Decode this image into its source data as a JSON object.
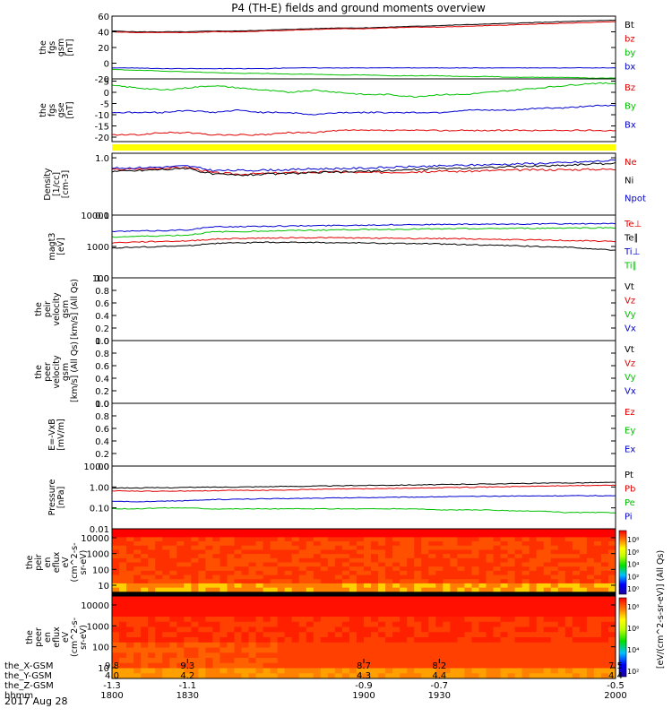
{
  "title": "P4 (TH-E) fields and ground moments overview",
  "date_label": "2017 Aug 28",
  "colors": {
    "black": "#000000",
    "red": "#e00000",
    "green": "#00c000",
    "blue": "#0000d0",
    "yellow": "#ffff00"
  },
  "chart_data": [
    {
      "type": "line",
      "id": "fgs_gsm",
      "ylabel_lines": [
        "the",
        "fgs",
        "gsm",
        "[nT]"
      ],
      "ylim": [
        -20,
        60
      ],
      "yticks": [
        "60",
        "40",
        "20",
        "0",
        "-20"
      ],
      "legend": [
        "Bt",
        "bz",
        "by",
        "bx"
      ],
      "x": [
        1800,
        1810,
        1820,
        1830,
        1840,
        1850,
        1860,
        1870,
        1880,
        1890,
        1900,
        1910,
        1920,
        1930,
        1940,
        1950,
        1960,
        1970,
        1980,
        1990,
        2000
      ],
      "series": [
        {
          "name": "Bt",
          "color": "black",
          "values": [
            41,
            40,
            40,
            40,
            41,
            41,
            42,
            43,
            44,
            45,
            45,
            46,
            47,
            48,
            49,
            50,
            51,
            52,
            53,
            54,
            55
          ]
        },
        {
          "name": "bz",
          "color": "red",
          "values": [
            40,
            39,
            39,
            39,
            40,
            40,
            41,
            42,
            43,
            44,
            44,
            45,
            46,
            46,
            47,
            48,
            49,
            50,
            51,
            52,
            53
          ]
        },
        {
          "name": "by",
          "color": "green",
          "values": [
            -8,
            -9,
            -10,
            -11,
            -12,
            -13,
            -13,
            -14,
            -14,
            -15,
            -15,
            -16,
            -16,
            -16,
            -17,
            -17,
            -18,
            -18,
            -18,
            -19,
            -19
          ]
        },
        {
          "name": "bx",
          "color": "blue",
          "values": [
            -6,
            -6,
            -7,
            -7,
            -7,
            -7,
            -7,
            -6,
            -6,
            -6,
            -6,
            -6,
            -6,
            -6,
            -6,
            -6,
            -6,
            -6,
            -6,
            -6,
            -6
          ]
        }
      ]
    },
    {
      "type": "line",
      "id": "fgs_gse",
      "ylabel_lines": [
        "the",
        "fgs",
        "gse",
        "[nT]"
      ],
      "ylim": [
        -22,
        6
      ],
      "yticks": [
        "5",
        "0",
        "-5",
        "-10",
        "-15",
        "-20"
      ],
      "legend": [
        "Bz",
        "By",
        "Bx"
      ],
      "x": [
        1800,
        1810,
        1820,
        1830,
        1840,
        1850,
        1860,
        1870,
        1880,
        1890,
        1900,
        1910,
        1920,
        1930,
        1940,
        1950,
        1960,
        1970,
        1980,
        1990,
        2000
      ],
      "series": [
        {
          "name": "Bz",
          "color": "red",
          "values": [
            -19,
            -19,
            -18,
            -18,
            -19,
            -19,
            -19,
            -18,
            -18,
            -17,
            -17,
            -17,
            -17,
            -17,
            -17,
            -17,
            -17,
            -17,
            -17,
            -17,
            -17
          ]
        },
        {
          "name": "By",
          "color": "green",
          "values": [
            3,
            2,
            1,
            2,
            3,
            2,
            1,
            0,
            1,
            0,
            -1,
            -1,
            -2,
            -1,
            -1,
            0,
            1,
            2,
            3,
            4,
            4
          ]
        },
        {
          "name": "Bx",
          "color": "blue",
          "values": [
            -9,
            -9,
            -9,
            -8,
            -9,
            -8,
            -9,
            -9,
            -10,
            -9,
            -9,
            -9,
            -9,
            -9,
            -8,
            -8,
            -8,
            -7,
            -7,
            -6,
            -6
          ]
        }
      ]
    },
    {
      "type": "line",
      "id": "density",
      "log": true,
      "ylabel_lines": [
        "Density",
        "[1/cc]",
        "[cm-3]"
      ],
      "ylim": [
        0.1,
        1.2
      ],
      "yticks": [
        "1.0",
        "0.1"
      ],
      "legend": [
        "Ne",
        "Ni",
        "Npot"
      ],
      "x": [
        1800,
        1810,
        1820,
        1830,
        1840,
        1850,
        1860,
        1870,
        1880,
        1890,
        1900,
        1910,
        1920,
        1930,
        1940,
        1950,
        1960,
        1970,
        1980,
        1990,
        2000
      ],
      "series": [
        {
          "name": "Ne",
          "color": "red",
          "values": [
            0.62,
            0.64,
            0.66,
            0.68,
            0.55,
            0.52,
            0.53,
            0.55,
            0.56,
            0.57,
            0.55,
            0.56,
            0.57,
            0.58,
            0.58,
            0.6,
            0.61,
            0.62,
            0.62,
            0.63,
            0.63
          ]
        },
        {
          "name": "Ni",
          "color": "black",
          "values": [
            0.58,
            0.6,
            0.63,
            0.65,
            0.52,
            0.5,
            0.52,
            0.53,
            0.55,
            0.56,
            0.58,
            0.6,
            0.62,
            0.65,
            0.66,
            0.68,
            0.7,
            0.72,
            0.74,
            0.78,
            0.8
          ]
        },
        {
          "name": "Npot",
          "color": "blue",
          "values": [
            0.66,
            0.67,
            0.69,
            0.72,
            0.6,
            0.6,
            0.61,
            0.62,
            0.64,
            0.65,
            0.66,
            0.68,
            0.7,
            0.72,
            0.74,
            0.76,
            0.78,
            0.8,
            0.82,
            0.86,
            0.9
          ]
        }
      ]
    },
    {
      "type": "line",
      "id": "temperature",
      "log": true,
      "ylabel_lines": [
        "magt3",
        "[eV]"
      ],
      "ylim": [
        100,
        10000
      ],
      "yticks": [
        "10000",
        "1000",
        "100"
      ],
      "legend": [
        "Te⊥",
        "Te∥",
        "Ti⊥",
        "Ti∥"
      ],
      "x": [
        1800,
        1810,
        1820,
        1830,
        1840,
        1850,
        1860,
        1870,
        1880,
        1890,
        1900,
        1910,
        1920,
        1930,
        1940,
        1950,
        1960,
        1970,
        1980,
        1990,
        2000
      ],
      "series": [
        {
          "name": "Te⊥",
          "color": "red",
          "values": [
            1300,
            1400,
            1450,
            1500,
            1700,
            1800,
            1850,
            1900,
            1900,
            1900,
            1850,
            1850,
            1800,
            1800,
            1750,
            1700,
            1650,
            1600,
            1550,
            1500,
            1450
          ]
        },
        {
          "name": "Te∥",
          "color": "black",
          "values": [
            900,
            950,
            1000,
            1050,
            1250,
            1300,
            1350,
            1350,
            1350,
            1300,
            1300,
            1250,
            1250,
            1200,
            1150,
            1100,
            1050,
            1000,
            950,
            850,
            750
          ]
        },
        {
          "name": "Ti⊥",
          "color": "blue",
          "values": [
            3000,
            3100,
            3200,
            3400,
            4200,
            4300,
            4400,
            4500,
            4600,
            4700,
            4800,
            4900,
            5000,
            5000,
            5100,
            5100,
            5200,
            5200,
            5300,
            5300,
            5300
          ]
        },
        {
          "name": "Ti∥",
          "color": "green",
          "values": [
            2000,
            2100,
            2200,
            2300,
            2900,
            3000,
            3100,
            3200,
            3300,
            3400,
            3500,
            3500,
            3600,
            3600,
            3700,
            3700,
            3800,
            3800,
            3900,
            3900,
            4000
          ]
        }
      ]
    },
    {
      "type": "line",
      "id": "peir_velocity",
      "ylabel_lines": [
        "the",
        "peir",
        "velocity",
        "gsm",
        "[km/s] (All Qs)"
      ],
      "ylim": [
        0,
        1
      ],
      "yticks": [
        "1.0",
        "0.8",
        "0.6",
        "0.4",
        "0.2",
        "0.0"
      ],
      "legend": [
        "Vt",
        "Vz",
        "Vy",
        "Vx"
      ],
      "series": []
    },
    {
      "type": "line",
      "id": "peer_velocity",
      "ylabel_lines": [
        "the",
        "peer",
        "velocity",
        "gsm",
        "[km/s] (All Qs)"
      ],
      "ylim": [
        0,
        1
      ],
      "yticks": [
        "1.0",
        "0.8",
        "0.6",
        "0.4",
        "0.2",
        "0.0"
      ],
      "legend": [
        "Vt",
        "Vz",
        "Vy",
        "Vx"
      ],
      "series": []
    },
    {
      "type": "line",
      "id": "efield",
      "ylabel_lines": [
        "E=-VxB",
        "[mV/m]"
      ],
      "ylim": [
        0,
        1
      ],
      "yticks": [
        "1.0",
        "0.8",
        "0.6",
        "0.4",
        "0.2",
        "0.0"
      ],
      "legend": [
        "Ez",
        "Ey",
        "Ex"
      ],
      "series": []
    },
    {
      "type": "line",
      "id": "pressure",
      "log": true,
      "ylabel_lines": [
        "Pressure",
        "[nPa]"
      ],
      "ylim": [
        0.01,
        10
      ],
      "yticks": [
        "10.00",
        "1.00",
        "0.10",
        "0.01"
      ],
      "legend": [
        "Pt",
        "Pb",
        "Pe",
        "Pi"
      ],
      "x": [
        1800,
        1810,
        1820,
        1830,
        1840,
        1850,
        1860,
        1870,
        1880,
        1890,
        1900,
        1910,
        1920,
        1930,
        1940,
        1950,
        1960,
        1970,
        1980,
        1990,
        2000
      ],
      "series": [
        {
          "name": "Pt",
          "color": "black",
          "values": [
            0.9,
            0.9,
            0.92,
            0.95,
            0.98,
            1.0,
            1.03,
            1.06,
            1.1,
            1.14,
            1.18,
            1.22,
            1.25,
            1.3,
            1.35,
            1.4,
            1.45,
            1.5,
            1.55,
            1.6,
            1.65
          ]
        },
        {
          "name": "Pb",
          "color": "red",
          "values": [
            0.65,
            0.63,
            0.63,
            0.64,
            0.67,
            0.68,
            0.7,
            0.72,
            0.76,
            0.8,
            0.82,
            0.85,
            0.88,
            0.92,
            0.96,
            1.0,
            1.04,
            1.1,
            1.14,
            1.18,
            1.2
          ]
        },
        {
          "name": "Pe",
          "color": "green",
          "values": [
            0.09,
            0.09,
            0.1,
            0.1,
            0.09,
            0.09,
            0.09,
            0.09,
            0.09,
            0.09,
            0.09,
            0.09,
            0.09,
            0.08,
            0.08,
            0.08,
            0.07,
            0.07,
            0.06,
            0.06,
            0.06
          ]
        },
        {
          "name": "Pi",
          "color": "blue",
          "values": [
            0.2,
            0.2,
            0.21,
            0.22,
            0.25,
            0.26,
            0.27,
            0.28,
            0.29,
            0.3,
            0.31,
            0.32,
            0.33,
            0.34,
            0.35,
            0.36,
            0.37,
            0.37,
            0.38,
            0.38,
            0.38
          ]
        }
      ]
    },
    {
      "type": "heatmap",
      "id": "peir_eflux",
      "ylabel_lines": [
        "the",
        "peir",
        "en",
        "eflux",
        "eV",
        "(cm^2-s-",
        "sr-eV)"
      ],
      "yticks": [
        "10000",
        "1000",
        "100",
        "10"
      ],
      "colorbar_ticks": [
        "10⁸",
        "10⁶",
        "10⁴",
        "10²",
        "10⁰"
      ],
      "colorbar_label": "[eV/(cm^2-s-sr-eV)] (All Qs)"
    },
    {
      "type": "heatmap",
      "id": "peer_eflux",
      "ylabel_lines": [
        "the",
        "peer",
        "en",
        "eflux",
        "eV",
        "(cm^2-s-",
        "sr-eV)"
      ],
      "yticks": [
        "10000",
        "1000",
        "100",
        "10"
      ],
      "colorbar_ticks": [
        "10⁸",
        "10⁶",
        "10⁴",
        "10²"
      ]
    }
  ],
  "x_axis": {
    "row_labels": [
      "the_X-GSM",
      "the_Y-GSM",
      "the_Z-GSM",
      "hhmm"
    ],
    "ticks": [
      {
        "x": 1800,
        "rows": [
          "9.8",
          "4.0",
          "-1.3",
          "1800"
        ]
      },
      {
        "x": 1830,
        "rows": [
          "9.3",
          "4.2",
          "-1.1",
          "1830"
        ]
      },
      {
        "x": 1900,
        "rows": [
          "8.7",
          "4.3",
          "-0.9",
          "1900"
        ]
      },
      {
        "x": 1930,
        "rows": [
          "8.2",
          "4.4",
          "-0.7",
          "1930"
        ]
      },
      {
        "x": 2000,
        "rows": [
          "7.5",
          "4.4",
          "-0.5",
          "2000"
        ]
      }
    ]
  }
}
